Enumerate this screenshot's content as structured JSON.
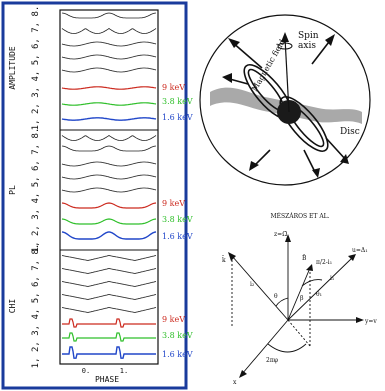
{
  "left_panel": {
    "frame_color": "#1a3b9c",
    "sections": [
      {
        "title": "AMPLITUDE",
        "index_text": "1, 2, 3, 4, 5, 6, 7, 8.",
        "energies": [
          {
            "label": "9 keV",
            "color": "#cc2a1f"
          },
          {
            "label": "3.8 keV",
            "color": "#2fbf2a"
          },
          {
            "label": "1.6 keV",
            "color": "#2147c9"
          }
        ]
      },
      {
        "title": "PL",
        "index_text": "1, 2, 3, 4, 5, 6, 7, 8.",
        "energies": [
          {
            "label": "9 keV",
            "color": "#cc2a1f"
          },
          {
            "label": "3.8 keV",
            "color": "#2fbf2a"
          },
          {
            "label": "1.6 keV",
            "color": "#2147c9"
          }
        ]
      },
      {
        "title": "CHI",
        "index_text": "1, 2, 3, 4, 5, 6, 7, 8.",
        "energies": [
          {
            "label": "9 keV",
            "color": "#cc2a1f"
          },
          {
            "label": "3.8 keV",
            "color": "#2fbf2a"
          },
          {
            "label": "1.6 keV",
            "color": "#2147c9"
          }
        ]
      }
    ],
    "xaxis": {
      "ticks": [
        "0.",
        "1."
      ],
      "label": "PHASE"
    }
  },
  "top_right": {
    "spin_axis_label": "Spin\naxis",
    "field_label": "Magnetic field",
    "disc_label": "Disc"
  },
  "bottom_right": {
    "caption": "MÉSZÁROS ET AL.",
    "axis_labels": {
      "z": "z=Ω̄",
      "y": "y=v",
      "x": "x",
      "u": "u=Δ₁",
      "k": "k̄",
      "B": "B̄",
      "theta": "θ",
      "phi": "2πφ",
      "pi_minus": "π/2-i₁",
      "i1": "i₁",
      "i2": "i₂",
      "theta1": "θ₁",
      "beta": "β"
    }
  }
}
